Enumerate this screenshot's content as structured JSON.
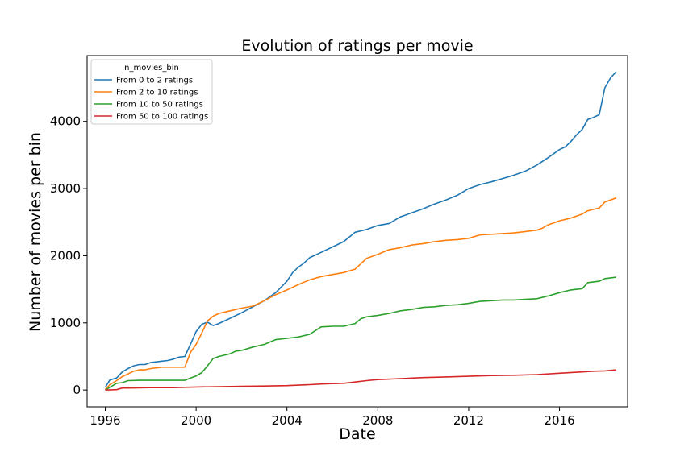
{
  "chart_data": {
    "type": "line",
    "title": "Evolution of ratings per movie",
    "xlabel": "Date",
    "ylabel": "Number of movies per bin",
    "xlim": [
      1995.2,
      2019.0
    ],
    "ylim": [
      -250,
      4980
    ],
    "xticks": [
      1996,
      2000,
      2004,
      2008,
      2012,
      2016
    ],
    "xtick_labels": [
      "1996",
      "2000",
      "2004",
      "2008",
      "2012",
      "2016"
    ],
    "yticks": [
      0,
      1000,
      2000,
      3000,
      4000
    ],
    "ytick_labels": [
      "0",
      "1000",
      "2000",
      "3000",
      "4000"
    ],
    "grid": false,
    "legend_title": "n_movies_bin",
    "legend_position": "top-left",
    "series": [
      {
        "name": "From 0 to 2 ratings",
        "color": "#1f77b4",
        "points": [
          [
            1996.0,
            40
          ],
          [
            1996.2,
            150
          ],
          [
            1996.5,
            180
          ],
          [
            1996.75,
            270
          ],
          [
            1997.0,
            320
          ],
          [
            1997.25,
            360
          ],
          [
            1997.5,
            380
          ],
          [
            1997.75,
            380
          ],
          [
            1998.0,
            410
          ],
          [
            1998.5,
            430
          ],
          [
            1998.75,
            440
          ],
          [
            1999.0,
            460
          ],
          [
            1999.25,
            490
          ],
          [
            1999.5,
            500
          ],
          [
            1999.75,
            680
          ],
          [
            2000.0,
            870
          ],
          [
            2000.25,
            980
          ],
          [
            2000.5,
            1010
          ],
          [
            2000.75,
            960
          ],
          [
            2001.0,
            990
          ],
          [
            2001.5,
            1070
          ],
          [
            2002.0,
            1150
          ],
          [
            2002.5,
            1240
          ],
          [
            2003.0,
            1330
          ],
          [
            2003.5,
            1450
          ],
          [
            2004.0,
            1620
          ],
          [
            2004.25,
            1750
          ],
          [
            2004.5,
            1830
          ],
          [
            2004.75,
            1890
          ],
          [
            2005.0,
            1970
          ],
          [
            2005.5,
            2050
          ],
          [
            2006.0,
            2130
          ],
          [
            2006.5,
            2210
          ],
          [
            2007.0,
            2350
          ],
          [
            2007.5,
            2390
          ],
          [
            2008.0,
            2450
          ],
          [
            2008.5,
            2480
          ],
          [
            2009.0,
            2580
          ],
          [
            2009.5,
            2640
          ],
          [
            2010.0,
            2700
          ],
          [
            2010.5,
            2770
          ],
          [
            2011.0,
            2830
          ],
          [
            2011.5,
            2900
          ],
          [
            2012.0,
            3000
          ],
          [
            2012.5,
            3060
          ],
          [
            2013.0,
            3100
          ],
          [
            2013.5,
            3150
          ],
          [
            2014.0,
            3200
          ],
          [
            2014.5,
            3260
          ],
          [
            2015.0,
            3350
          ],
          [
            2015.5,
            3460
          ],
          [
            2016.0,
            3580
          ],
          [
            2016.25,
            3620
          ],
          [
            2016.5,
            3700
          ],
          [
            2016.75,
            3800
          ],
          [
            2017.0,
            3880
          ],
          [
            2017.25,
            4030
          ],
          [
            2017.5,
            4060
          ],
          [
            2017.75,
            4100
          ],
          [
            2018.0,
            4500
          ],
          [
            2018.25,
            4650
          ],
          [
            2018.5,
            4740
          ]
        ]
      },
      {
        "name": "From 2 to 10 ratings",
        "color": "#ff7f0e",
        "points": [
          [
            1996.0,
            10
          ],
          [
            1996.2,
            80
          ],
          [
            1996.5,
            140
          ],
          [
            1996.75,
            200
          ],
          [
            1997.0,
            240
          ],
          [
            1997.25,
            280
          ],
          [
            1997.5,
            300
          ],
          [
            1997.75,
            300
          ],
          [
            1998.0,
            320
          ],
          [
            1998.5,
            340
          ],
          [
            1999.0,
            340
          ],
          [
            1999.5,
            340
          ],
          [
            1999.75,
            560
          ],
          [
            2000.0,
            680
          ],
          [
            2000.25,
            850
          ],
          [
            2000.5,
            1030
          ],
          [
            2000.75,
            1100
          ],
          [
            2001.0,
            1140
          ],
          [
            2001.5,
            1180
          ],
          [
            2002.0,
            1220
          ],
          [
            2002.5,
            1250
          ],
          [
            2003.0,
            1330
          ],
          [
            2003.5,
            1420
          ],
          [
            2004.0,
            1490
          ],
          [
            2004.5,
            1570
          ],
          [
            2005.0,
            1640
          ],
          [
            2005.5,
            1690
          ],
          [
            2006.0,
            1720
          ],
          [
            2006.5,
            1750
          ],
          [
            2007.0,
            1800
          ],
          [
            2007.25,
            1880
          ],
          [
            2007.5,
            1960
          ],
          [
            2008.0,
            2020
          ],
          [
            2008.5,
            2090
          ],
          [
            2009.0,
            2120
          ],
          [
            2009.5,
            2160
          ],
          [
            2010.0,
            2180
          ],
          [
            2010.5,
            2210
          ],
          [
            2011.0,
            2230
          ],
          [
            2011.5,
            2240
          ],
          [
            2012.0,
            2260
          ],
          [
            2012.5,
            2310
          ],
          [
            2013.0,
            2320
          ],
          [
            2013.5,
            2330
          ],
          [
            2014.0,
            2340
          ],
          [
            2014.5,
            2360
          ],
          [
            2015.0,
            2380
          ],
          [
            2015.25,
            2410
          ],
          [
            2015.5,
            2460
          ],
          [
            2016.0,
            2520
          ],
          [
            2016.5,
            2560
          ],
          [
            2017.0,
            2620
          ],
          [
            2017.25,
            2670
          ],
          [
            2017.5,
            2690
          ],
          [
            2017.75,
            2710
          ],
          [
            2018.0,
            2800
          ],
          [
            2018.5,
            2860
          ]
        ]
      },
      {
        "name": "From 10 to 50 ratings",
        "color": "#2ca02c",
        "points": [
          [
            1996.0,
            0
          ],
          [
            1996.2,
            40
          ],
          [
            1996.5,
            100
          ],
          [
            1996.75,
            110
          ],
          [
            1997.0,
            140
          ],
          [
            1997.5,
            145
          ],
          [
            1998.0,
            145
          ],
          [
            1998.5,
            145
          ],
          [
            1999.0,
            145
          ],
          [
            1999.5,
            145
          ],
          [
            1999.75,
            180
          ],
          [
            2000.0,
            210
          ],
          [
            2000.25,
            260
          ],
          [
            2000.5,
            360
          ],
          [
            2000.75,
            470
          ],
          [
            2001.0,
            500
          ],
          [
            2001.5,
            540
          ],
          [
            2001.75,
            580
          ],
          [
            2002.0,
            590
          ],
          [
            2002.5,
            640
          ],
          [
            2003.0,
            680
          ],
          [
            2003.5,
            750
          ],
          [
            2004.0,
            770
          ],
          [
            2004.5,
            790
          ],
          [
            2005.0,
            830
          ],
          [
            2005.5,
            940
          ],
          [
            2006.0,
            950
          ],
          [
            2006.5,
            950
          ],
          [
            2007.0,
            990
          ],
          [
            2007.25,
            1060
          ],
          [
            2007.5,
            1090
          ],
          [
            2008.0,
            1110
          ],
          [
            2008.5,
            1140
          ],
          [
            2009.0,
            1180
          ],
          [
            2009.5,
            1200
          ],
          [
            2010.0,
            1230
          ],
          [
            2010.5,
            1240
          ],
          [
            2011.0,
            1260
          ],
          [
            2011.5,
            1270
          ],
          [
            2012.0,
            1290
          ],
          [
            2012.5,
            1320
          ],
          [
            2013.0,
            1330
          ],
          [
            2013.5,
            1340
          ],
          [
            2014.0,
            1340
          ],
          [
            2014.5,
            1350
          ],
          [
            2015.0,
            1360
          ],
          [
            2015.5,
            1400
          ],
          [
            2016.0,
            1450
          ],
          [
            2016.5,
            1490
          ],
          [
            2017.0,
            1510
          ],
          [
            2017.25,
            1600
          ],
          [
            2017.5,
            1610
          ],
          [
            2017.75,
            1620
          ],
          [
            2018.0,
            1660
          ],
          [
            2018.5,
            1680
          ]
        ]
      },
      {
        "name": "From 50 to 100 ratings",
        "color": "#d62728",
        "points": [
          [
            1996.0,
            0
          ],
          [
            1996.5,
            5
          ],
          [
            1996.75,
            30
          ],
          [
            1997.0,
            30
          ],
          [
            1998.0,
            35
          ],
          [
            1999.0,
            35
          ],
          [
            1999.5,
            40
          ],
          [
            2000.0,
            45
          ],
          [
            2001.0,
            50
          ],
          [
            2002.0,
            55
          ],
          [
            2003.0,
            60
          ],
          [
            2004.0,
            65
          ],
          [
            2005.0,
            80
          ],
          [
            2005.5,
            90
          ],
          [
            2006.0,
            95
          ],
          [
            2006.5,
            100
          ],
          [
            2007.0,
            120
          ],
          [
            2007.5,
            140
          ],
          [
            2008.0,
            155
          ],
          [
            2009.0,
            170
          ],
          [
            2010.0,
            185
          ],
          [
            2011.0,
            195
          ],
          [
            2012.0,
            205
          ],
          [
            2013.0,
            215
          ],
          [
            2014.0,
            220
          ],
          [
            2015.0,
            230
          ],
          [
            2016.0,
            250
          ],
          [
            2017.0,
            270
          ],
          [
            2017.5,
            280
          ],
          [
            2018.0,
            285
          ],
          [
            2018.5,
            300
          ]
        ]
      }
    ]
  }
}
